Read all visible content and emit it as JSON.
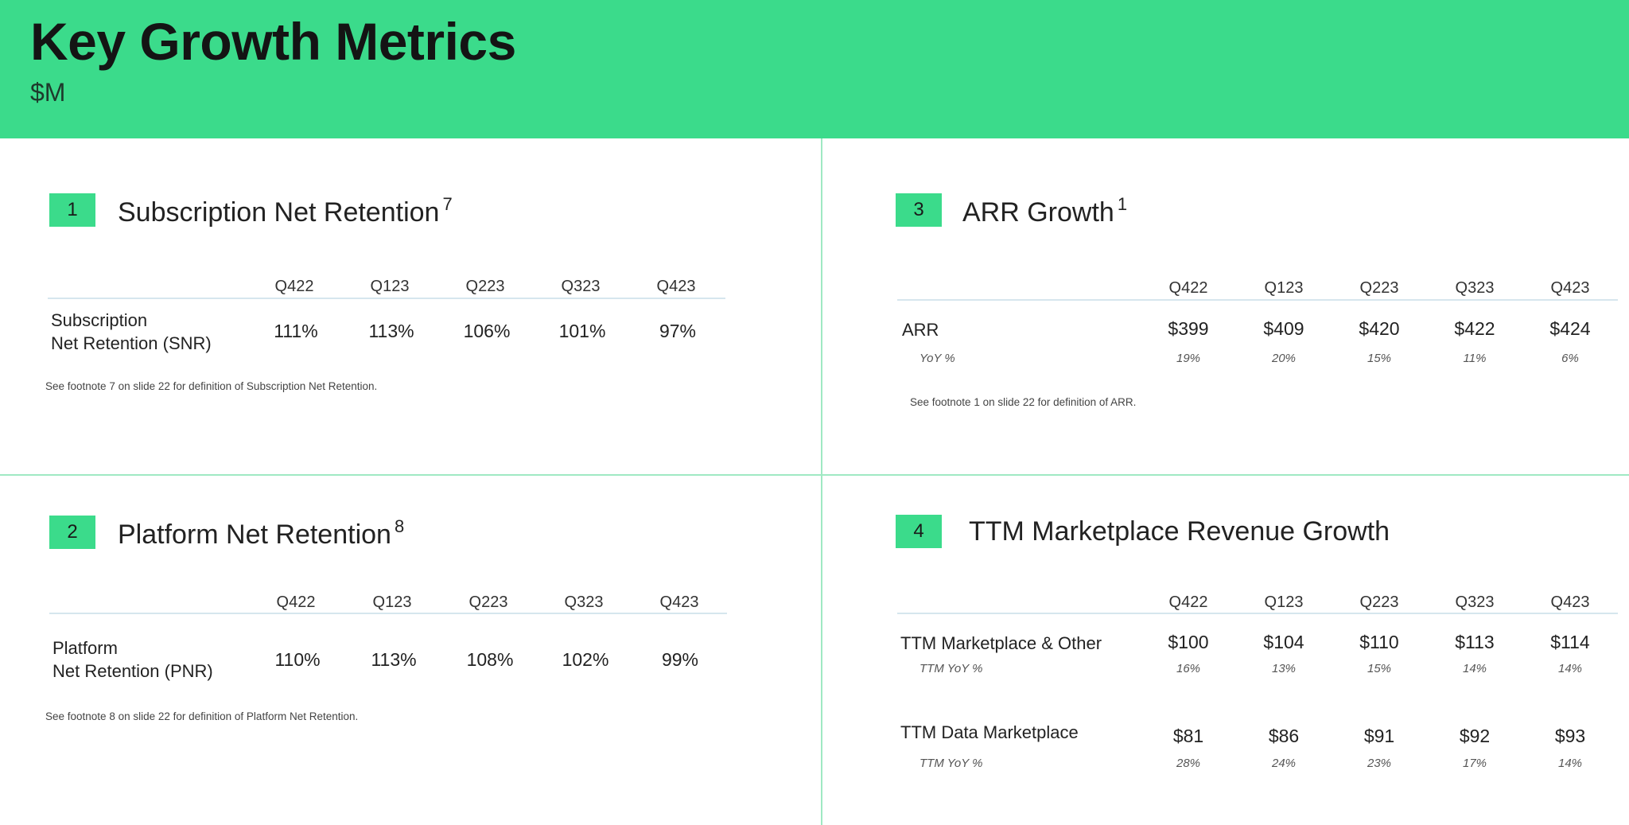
{
  "header": {
    "title": "Key Growth Metrics",
    "subtitle": "$M"
  },
  "quarters": [
    "Q422",
    "Q123",
    "Q223",
    "Q323",
    "Q423"
  ],
  "section1": {
    "number": "1",
    "title": "Subscription Net Retention",
    "footnote_ref": "7",
    "row_label_line1": "Subscription",
    "row_label_line2": "Net Retention (SNR)",
    "values": [
      "111%",
      "113%",
      "106%",
      "101%",
      "97%"
    ],
    "footnote": "See footnote 7 on slide 22 for definition of Subscription Net Retention."
  },
  "section2": {
    "number": "2",
    "title": "Platform Net Retention",
    "footnote_ref": "8",
    "row_label_line1": "Platform",
    "row_label_line2": "Net Retention (PNR)",
    "values": [
      "110%",
      "113%",
      "108%",
      "102%",
      "99%"
    ],
    "footnote": "See footnote 8 on slide 22 for definition of Platform Net Retention."
  },
  "section3": {
    "number": "3",
    "title": "ARR Growth",
    "footnote_ref": "1",
    "row_label": "ARR",
    "sub_label": "YoY %",
    "values": [
      "$399",
      "$409",
      "$420",
      "$422",
      "$424"
    ],
    "yoy": [
      "19%",
      "20%",
      "15%",
      "11%",
      "6%"
    ],
    "footnote": "See footnote 1 on slide 22 for definition of ARR."
  },
  "section4": {
    "number": "4",
    "title": "TTM Marketplace Revenue Growth",
    "rows": [
      {
        "label": "TTM Marketplace & Other",
        "sub_label": "TTM YoY %",
        "values": [
          "$100",
          "$104",
          "$110",
          "$113",
          "$114"
        ],
        "yoy": [
          "16%",
          "13%",
          "15%",
          "14%",
          "14%"
        ]
      },
      {
        "label": "TTM Data Marketplace",
        "sub_label": "TTM YoY %",
        "values": [
          "$81",
          "$86",
          "$91",
          "$92",
          "$93"
        ],
        "yoy": [
          "28%",
          "24%",
          "23%",
          "17%",
          "14%"
        ]
      }
    ]
  },
  "colors": {
    "accent": "#3bdb8b",
    "divider": "#9fe9c3",
    "rule": "#d6e6ee"
  }
}
